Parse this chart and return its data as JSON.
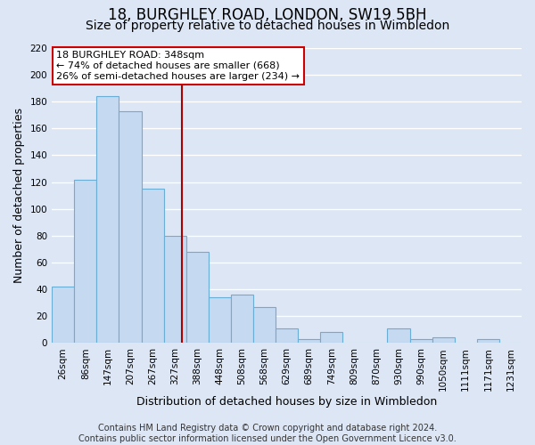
{
  "title": "18, BURGHLEY ROAD, LONDON, SW19 5BH",
  "subtitle": "Size of property relative to detached houses in Wimbledon",
  "xlabel": "Distribution of detached houses by size in Wimbledon",
  "ylabel": "Number of detached properties",
  "bin_labels": [
    "26sqm",
    "86sqm",
    "147sqm",
    "207sqm",
    "267sqm",
    "327sqm",
    "388sqm",
    "448sqm",
    "508sqm",
    "568sqm",
    "629sqm",
    "689sqm",
    "749sqm",
    "809sqm",
    "870sqm",
    "930sqm",
    "990sqm",
    "1050sqm",
    "1111sqm",
    "1171sqm",
    "1231sqm"
  ],
  "bar_values": [
    42,
    122,
    184,
    173,
    115,
    80,
    68,
    34,
    36,
    27,
    11,
    3,
    8,
    0,
    0,
    11,
    3,
    4,
    0,
    3,
    0
  ],
  "bar_color": "#c5d9f0",
  "bar_edge_color": "#6aaed6",
  "vline_color": "#aa0000",
  "annotation_title": "18 BURGHLEY ROAD: 348sqm",
  "annotation_line1": "← 74% of detached houses are smaller (668)",
  "annotation_line2": "26% of semi-detached houses are larger (234) →",
  "annotation_box_edgecolor": "#cc0000",
  "footer_line1": "Contains HM Land Registry data © Crown copyright and database right 2024.",
  "footer_line2": "Contains public sector information licensed under the Open Government Licence v3.0.",
  "ylim": [
    0,
    220
  ],
  "fig_background": "#dce6f5",
  "plot_background": "#dce6f5",
  "grid_color": "#ffffff",
  "title_fontsize": 12,
  "subtitle_fontsize": 10,
  "axis_label_fontsize": 9,
  "tick_fontsize": 7.5,
  "footer_fontsize": 7,
  "num_bins": 21,
  "vline_bin_index": 5
}
